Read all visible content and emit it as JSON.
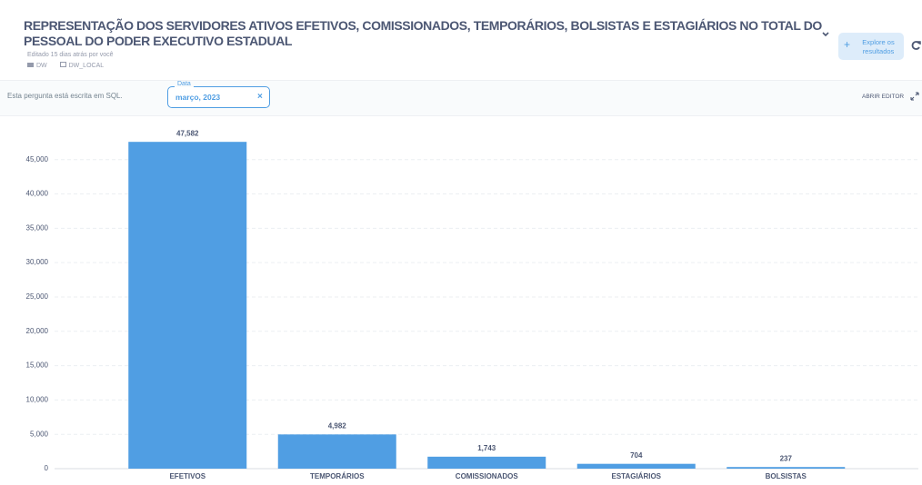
{
  "header": {
    "title": "REPRESENTAÇÃO DOS SERVIDORES ATIVOS EFETIVOS, COMISSIONADOS, TEMPORÁRIOS, BOLSISTAS E ESTAGIÁRIOS NO TOTAL DO PESSOAL DO PODER EXECUTIVO ESTADUAL",
    "edited": "Editado 15 dias atrás por você",
    "collection": "DW",
    "database": "DW_LOCAL",
    "explore_button": "Explore os resultados"
  },
  "toolbar": {
    "sql_note": "Esta pergunta está escrita em SQL.",
    "filter_label": "Data",
    "filter_value": "março, 2023",
    "open_editor": "ABRIR EDITOR"
  },
  "chart_data": {
    "type": "bar",
    "categories": [
      "EFETIVOS",
      "TEMPORÁRIOS",
      "COMISSIONADOS",
      "ESTAGIÁRIOS",
      "BOLSISTAS"
    ],
    "values": [
      47582,
      4982,
      1743,
      704,
      237
    ],
    "value_labels": [
      "47,582",
      "4,982",
      "1,743",
      "704",
      "237"
    ],
    "color": "#509ee3",
    "ylim": [
      0,
      50000
    ],
    "yticks": [
      0,
      {
        "value": 5000,
        "label": "5,000"
      },
      {
        "value": 10000,
        "label": "10,000"
      },
      {
        "value": 15000,
        "label": "15,000"
      },
      {
        "value": 20000,
        "label": "20,000"
      },
      {
        "value": 25000,
        "label": "25,000"
      },
      {
        "value": 30000,
        "label": "30,000"
      },
      {
        "value": 35000,
        "label": "35,000"
      },
      {
        "value": 40000,
        "label": "40,000"
      },
      {
        "value": 45000,
        "label": "45,000"
      }
    ],
    "grid": true
  }
}
